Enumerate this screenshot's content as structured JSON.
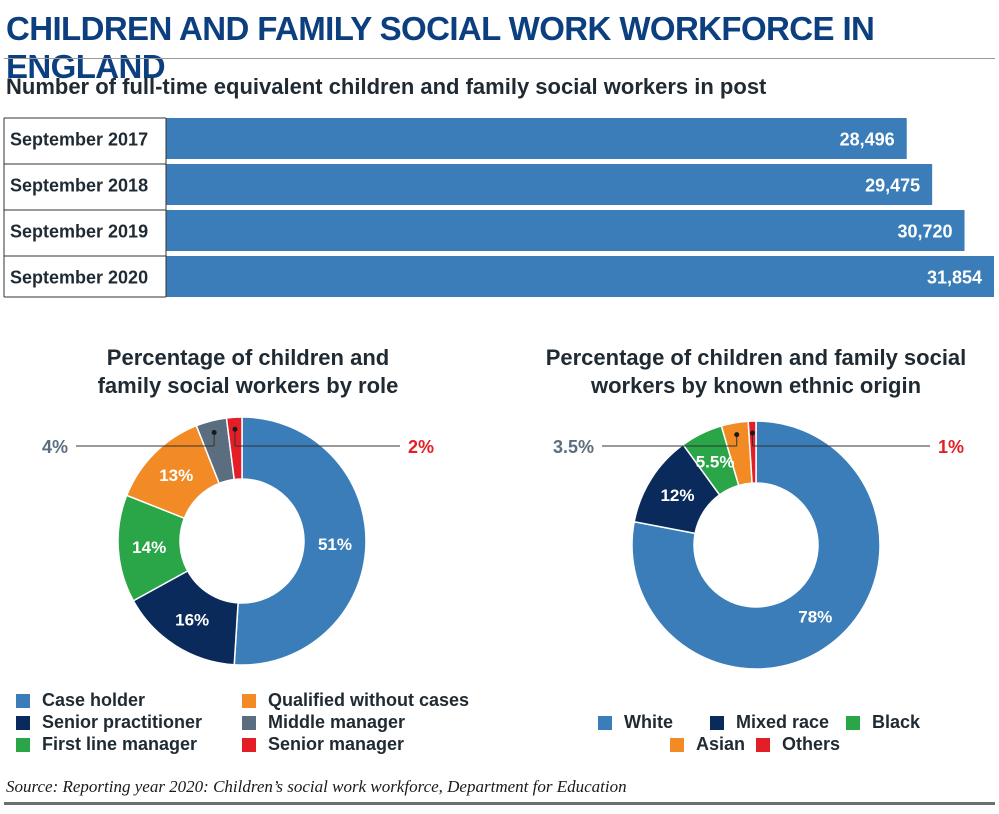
{
  "title": "CHILDREN AND FAMILY SOCIAL WORK WORKFORCE IN ENGLAND",
  "subtitle": "Number of full-time equivalent children and family social workers in post",
  "colors": {
    "title": "#0c3f7f",
    "bar": "#3a7db8",
    "case_holder": "#3a7db8",
    "senior_practitioner": "#0b2a5c",
    "first_line_manager": "#2aa548",
    "qualified_without_cases": "#f28a25",
    "middle_manager": "#5a6e7f",
    "senior_manager": "#e41e26"
  },
  "chart_data": [
    {
      "type": "bar",
      "orientation": "horizontal",
      "categories": [
        "September 2017",
        "September 2018",
        "September 2019",
        "September 2020"
      ],
      "values": [
        28496,
        29475,
        30720,
        31854
      ],
      "value_labels": [
        "28,496",
        "29,475",
        "30,720",
        "31,854"
      ]
    },
    {
      "type": "pie",
      "style": "donut",
      "title": "Percentage of children and family social workers by role",
      "slices": [
        {
          "name": "Case holder",
          "value": 51,
          "label": "51%",
          "color": "#3a7db8"
        },
        {
          "name": "Senior practitioner",
          "value": 16,
          "label": "16%",
          "color": "#0b2a5c"
        },
        {
          "name": "First line manager",
          "value": 14,
          "label": "14%",
          "color": "#2aa548"
        },
        {
          "name": "Qualified without cases",
          "value": 13,
          "label": "13%",
          "color": "#f28a25"
        },
        {
          "name": "Middle manager",
          "value": 4,
          "label": "4%",
          "color": "#5a6e7f",
          "callout": "left"
        },
        {
          "name": "Senior manager",
          "value": 2,
          "label": "2%",
          "color": "#e41e26",
          "callout": "right"
        }
      ],
      "legend": [
        "Case holder",
        "Qualified without cases",
        "Senior practitioner",
        "Middle manager",
        "First line manager",
        "Senior manager"
      ]
    },
    {
      "type": "pie",
      "style": "donut",
      "title": "Percentage of children and family social workers by known ethnic origin",
      "slices": [
        {
          "name": "White",
          "value": 78,
          "label": "78%",
          "color": "#3a7db8"
        },
        {
          "name": "Mixed race",
          "value": 12,
          "label": "12%",
          "color": "#0b2a5c"
        },
        {
          "name": "Black",
          "value": 5.5,
          "label": "5.5%",
          "color": "#2aa548"
        },
        {
          "name": "Asian",
          "value": 3.5,
          "label": "3.5%",
          "color": "#f28a25",
          "callout": "left"
        },
        {
          "name": "Others",
          "value": 1,
          "label": "1%",
          "color": "#e41e26",
          "callout": "right"
        }
      ],
      "legend": [
        "White",
        "Mixed race",
        "Black",
        "Asian",
        "Others"
      ]
    }
  ],
  "source": "Source: Reporting year 2020: Children’s social work workforce, Department for Education"
}
